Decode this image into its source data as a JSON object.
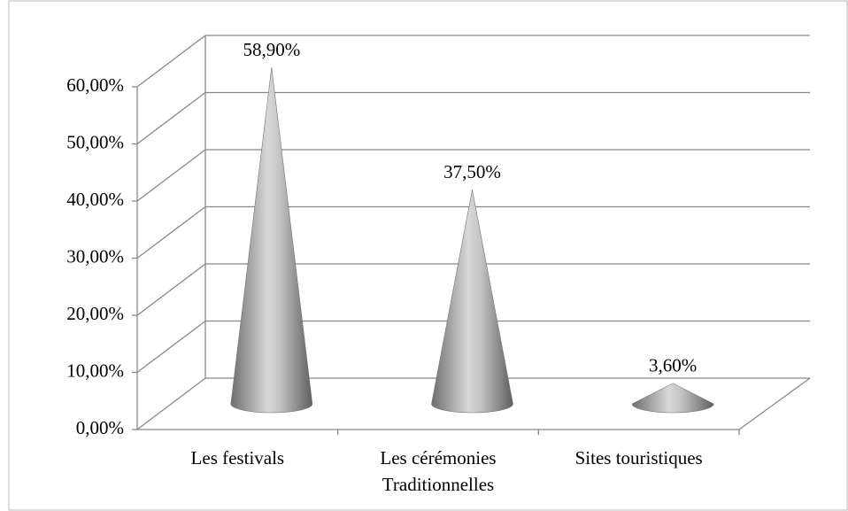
{
  "chart_data": {
    "type": "cone",
    "categories": [
      "Les festivals",
      "Les cérémonies Traditionnelles",
      "Sites touristiques"
    ],
    "values": [
      58.9,
      37.5,
      3.6
    ],
    "value_labels": [
      "58,90%",
      "37,50%",
      "3,60%"
    ],
    "color": "#9a9a9a",
    "ylim": [
      0,
      60
    ],
    "yticks": [
      {
        "value": 0,
        "label": "0,00%"
      },
      {
        "value": 10,
        "label": "10,00%"
      },
      {
        "value": 20,
        "label": "20,00%"
      },
      {
        "value": 30,
        "label": "30,00%"
      },
      {
        "value": 40,
        "label": "40,00%"
      },
      {
        "value": 50,
        "label": "50,00%"
      },
      {
        "value": 60,
        "label": "60,00%"
      }
    ],
    "grid": true
  }
}
